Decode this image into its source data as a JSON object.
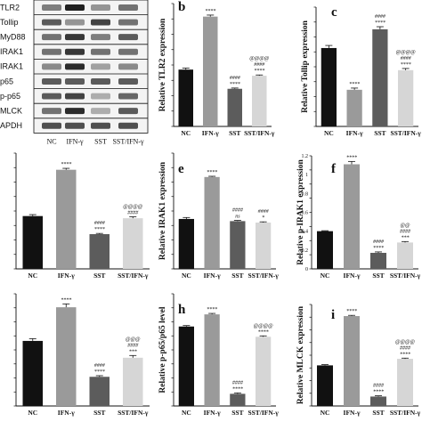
{
  "western_blot": {
    "rows": [
      "TLR2",
      "Tollip",
      "MyD88",
      "IRAK1",
      "p-IRAK1",
      "p65",
      "p-p65",
      "MLCK",
      "GAPDH"
    ],
    "row_labels_visible": [
      "TLR2",
      "Tollip",
      "MyD88",
      "IRAK1",
      "IRAK1",
      "p65",
      "p-p65",
      "MLCK",
      "APDH"
    ],
    "columns": [
      "NC",
      "IFN-γ",
      "SST",
      "SST/IFN-γ"
    ]
  },
  "colors": {
    "NC": "#111111",
    "IFN-γ": "#9a9a9a",
    "SST": "#5c5c5c",
    "SST/IFN-γ": "#d6d6d6"
  },
  "chart_data": [
    {
      "id": "b",
      "letter": "b",
      "type": "bar",
      "ylabel": "Relative TLR2 expression",
      "categories": [
        "NC",
        "IFN-γ",
        "SST",
        "SST/IFN-γ"
      ],
      "values": [
        0.74,
        1.43,
        0.49,
        0.66
      ],
      "errors": [
        0.02,
        0.02,
        0.01,
        0.01
      ],
      "ylim": [
        0,
        1.6
      ],
      "ticks": [],
      "annotations": [
        [
          "",
          ""
        ],
        [
          "****",
          ""
        ],
        [
          "####",
          "****"
        ],
        [
          "@@@@",
          "####",
          "****"
        ]
      ]
    },
    {
      "id": "c",
      "letter": "c",
      "type": "bar",
      "ylabel": "Relative Tollip expression",
      "categories": [
        "NC",
        "IFN-γ",
        "SST",
        "SST/IFN-γ"
      ],
      "values": [
        0.92,
        0.43,
        1.14,
        0.66
      ],
      "errors": [
        0.03,
        0.02,
        0.03,
        0.02
      ],
      "ylim": [
        0,
        1.4
      ],
      "ticks": [],
      "annotations": [
        [
          ""
        ],
        [
          "****"
        ],
        [
          "####",
          "****"
        ],
        [
          "@@@@",
          "####",
          "****"
        ]
      ]
    },
    {
      "id": "d",
      "letter": "",
      "type": "bar",
      "ylabel": "",
      "categories": [
        "NC",
        "IFN-γ",
        "SST",
        "SST/IFN-γ"
      ],
      "values": [
        0.73,
        1.37,
        0.48,
        0.7
      ],
      "errors": [
        0.02,
        0.02,
        0.01,
        0.02
      ],
      "ylim": [
        0,
        1.6
      ],
      "ticks": [],
      "annotations": [
        [
          ""
        ],
        [
          "****"
        ],
        [
          "####",
          "****"
        ],
        [
          "@@@@",
          "####"
        ]
      ]
    },
    {
      "id": "e",
      "letter": "e",
      "type": "bar",
      "ylabel": "Relative IRAK1 expression",
      "categories": [
        "NC",
        "IFN-γ",
        "SST",
        "SST/IFN-γ"
      ],
      "values": [
        0.69,
        1.27,
        0.66,
        0.64
      ],
      "errors": [
        0.02,
        0.01,
        0.01,
        0.01
      ],
      "ylim": [
        0,
        1.6
      ],
      "ticks": [],
      "annotations": [
        [
          ""
        ],
        [
          "****"
        ],
        [
          "####",
          "ns"
        ],
        [
          "####",
          "*"
        ]
      ]
    },
    {
      "id": "f",
      "letter": "f",
      "type": "bar",
      "ylabel": "Relative p-IRAK1 expression",
      "categories": [
        "NC",
        "IFN-γ",
        "SST",
        "SST/IFN-γ"
      ],
      "values": [
        0.4,
        1.11,
        0.17,
        0.28
      ],
      "errors": [
        0.005,
        0.03,
        0.01,
        0.01
      ],
      "ylim": [
        0,
        1.2
      ],
      "ticks": [
        0,
        0.2,
        0.4,
        0.6,
        0.8,
        1.0,
        1.2
      ],
      "tick_labels": [
        "0",
        "0.2",
        "0.4",
        "0.6",
        "0.8",
        "1",
        "1.2"
      ],
      "annotations": [
        [
          ""
        ],
        [
          "****"
        ],
        [
          "####",
          "****"
        ],
        [
          "@@",
          "####",
          "***"
        ]
      ]
    },
    {
      "id": "g",
      "letter": "",
      "type": "bar",
      "ylabel": "",
      "categories": [
        "NC",
        "IFN-γ",
        "SST",
        "SST/IFN-γ"
      ],
      "values": [
        0.58,
        0.88,
        0.26,
        0.43
      ],
      "errors": [
        0.02,
        0.03,
        0.01,
        0.02
      ],
      "ylim": [
        0,
        1.0
      ],
      "ticks": [],
      "annotations": [
        [
          ""
        ],
        [
          "****"
        ],
        [
          "####",
          "****"
        ],
        [
          "@@@",
          "####",
          "***"
        ]
      ]
    },
    {
      "id": "h",
      "letter": "h",
      "type": "bar",
      "ylabel": "Relative p-p65/p65 level",
      "categories": [
        "NC",
        "IFN-γ",
        "SST",
        "SST/IFN-γ"
      ],
      "values": [
        0.85,
        0.98,
        0.13,
        0.74
      ],
      "errors": [
        0.01,
        0.01,
        0.01,
        0.01
      ],
      "ylim": [
        0,
        1.2
      ],
      "ticks": [],
      "annotations": [
        [
          ""
        ],
        [
          "****"
        ],
        [
          "####",
          "****"
        ],
        [
          "@@@@",
          "****"
        ]
      ]
    },
    {
      "id": "i",
      "letter": "i",
      "type": "bar",
      "ylabel": "Relative MLCK expression",
      "categories": [
        "NC",
        "IFN-γ",
        "SST",
        "SST/IFN-γ"
      ],
      "values": [
        0.56,
        1.24,
        0.13,
        0.65
      ],
      "errors": [
        0.01,
        0.01,
        0.01,
        0.01
      ],
      "ylim": [
        0,
        1.4
      ],
      "ticks": [],
      "annotations": [
        [
          ""
        ],
        [
          "****"
        ],
        [
          "####",
          "****"
        ],
        [
          "@@@@",
          "####",
          "****"
        ]
      ]
    }
  ]
}
